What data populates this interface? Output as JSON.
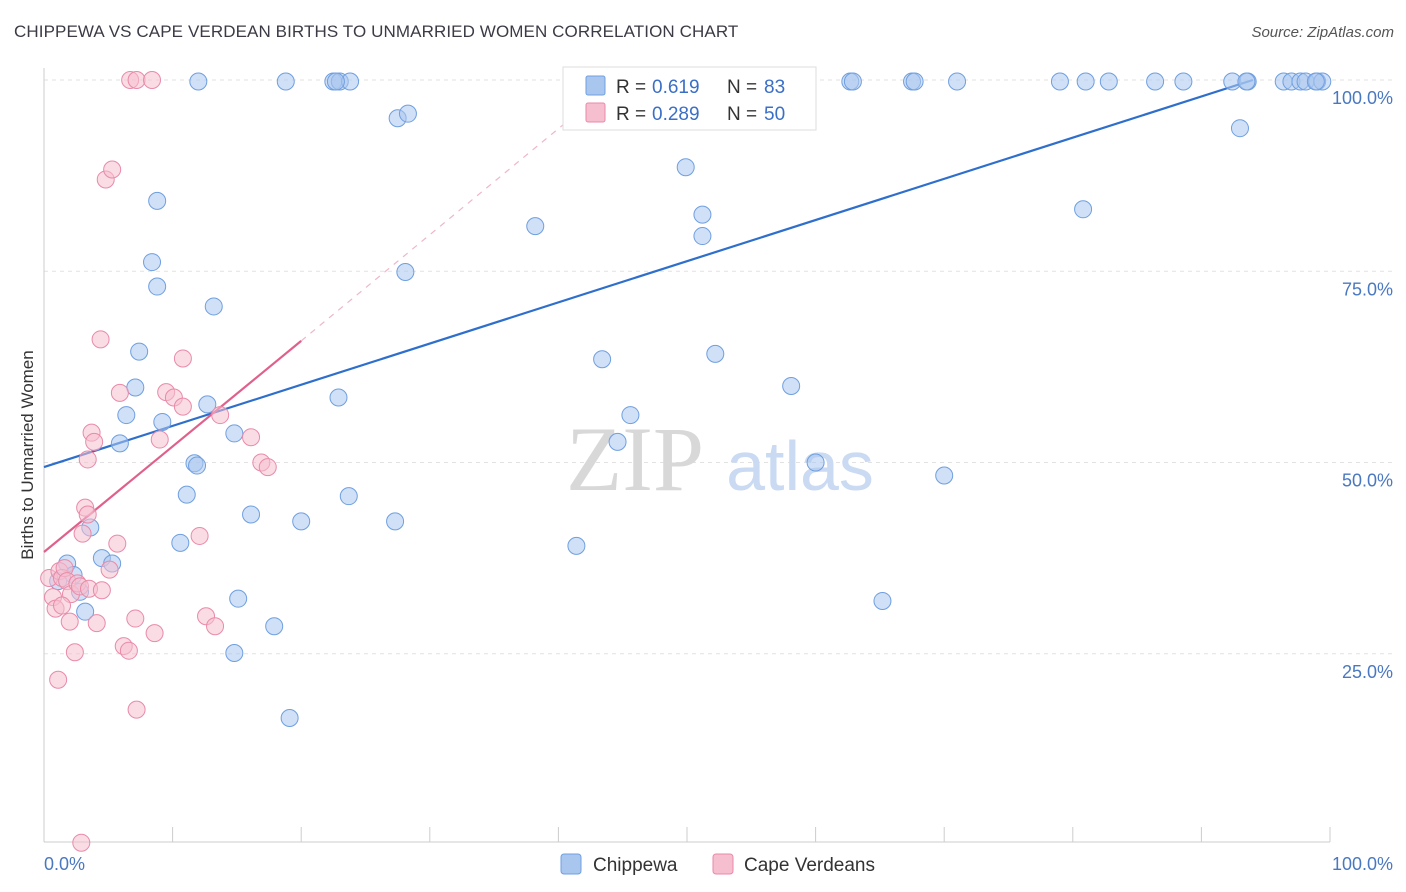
{
  "title": "CHIPPEWA VS CAPE VERDEAN BIRTHS TO UNMARRIED WOMEN CORRELATION CHART",
  "source": "Source: ZipAtlas.com",
  "watermark": {
    "zip": "ZIP",
    "atlas": "atlas"
  },
  "legend": {
    "r_label": "R =",
    "n_label": "N =",
    "rows": [
      {
        "r": "0.619",
        "n": "83",
        "color": "#a9c6ef",
        "stroke": "#6f9fe0"
      },
      {
        "r": "0.289",
        "n": "50",
        "color": "#f6bfd0",
        "stroke": "#e98aa9"
      }
    ]
  },
  "chart_data": {
    "type": "scatter",
    "title": "CHIPPEWA VS CAPE VERDEAN BIRTHS TO UNMARRIED WOMEN CORRELATION CHART",
    "xlabel": "",
    "ylabel": "Births to Unmarried Women",
    "xlim": [
      0,
      100
    ],
    "ylim": [
      0,
      105
    ],
    "x_tick_labels": [
      "0.0%",
      "100.0%"
    ],
    "y_ticks": [
      25,
      50,
      75,
      100
    ],
    "y_tick_labels": [
      "25.0%",
      "50.0%",
      "75.0%",
      "100.0%"
    ],
    "grid": true,
    "legend_position": "bottom",
    "series": [
      {
        "name": "Chippewa",
        "color": "#a9c6ef",
        "stroke": "#6f9fe0",
        "line_color": "#2f6fcc",
        "trend": {
          "x0": 0,
          "y0": 49.4,
          "x1": 94,
          "y1": 100
        },
        "x": [
          12,
          18.8,
          22.5,
          23,
          23.8,
          22.7,
          27.5,
          28.3,
          41.6,
          41.8,
          52.2,
          54.6,
          55.7,
          57.3,
          58.7,
          62.7,
          62.9,
          67.5,
          67.7,
          71,
          79,
          81,
          82.8,
          86.4,
          88.6,
          92.4,
          93.6,
          93.5,
          96.4,
          97,
          97.7,
          98.1,
          99,
          99.4,
          98.9,
          1.1,
          1.8,
          2.3,
          2.8,
          3.2,
          3.6,
          4.5,
          5.3,
          5.9,
          6.4,
          7.1,
          7.4,
          8.4,
          8.8,
          8.8,
          9.2,
          10.6,
          11.1,
          11.7,
          11.9,
          12.7,
          13.2,
          14.8,
          14.8,
          15.1,
          16.1,
          17.9,
          19.1,
          20,
          22.9,
          23.7,
          27.3,
          28.1,
          38.2,
          41.4,
          43.4,
          44.6,
          45.6,
          49.9,
          51.2,
          51.2,
          52.2,
          58.1,
          60,
          65.2,
          70,
          80.8,
          93
        ],
        "y": [
          99.8,
          99.8,
          99.8,
          99.8,
          99.8,
          99.8,
          95,
          95.6,
          99.8,
          99.8,
          99.8,
          99.8,
          99.8,
          99.8,
          99.8,
          99.8,
          99.8,
          99.8,
          99.8,
          99.8,
          99.8,
          99.8,
          99.8,
          99.8,
          99.8,
          99.8,
          99.8,
          99.8,
          99.8,
          99.8,
          99.8,
          99.8,
          99.8,
          99.8,
          99.8,
          34.5,
          36.8,
          35.3,
          33.1,
          30.5,
          41.5,
          37.5,
          36.8,
          52.5,
          56.2,
          59.8,
          64.5,
          76.2,
          84.2,
          73,
          55.3,
          39.5,
          45.8,
          49.9,
          49.6,
          57.6,
          70.4,
          53.8,
          25.1,
          32.2,
          43.2,
          28.6,
          16.6,
          42.3,
          58.5,
          45.6,
          42.3,
          74.9,
          80.9,
          39.1,
          63.5,
          52.7,
          56.2,
          88.6,
          82.4,
          79.6,
          64.2,
          60,
          50,
          31.9,
          48.3,
          83.1,
          93.7
        ]
      },
      {
        "name": "Cape Verdeans",
        "color": "#f6bfd0",
        "stroke": "#e98aa9",
        "line_color": "#e0608c",
        "trend": {
          "x0": 0,
          "y0": 38.3,
          "x1": 20,
          "y1": 65.9
        },
        "trend_extension": {
          "x0": 20,
          "y0": 65.9,
          "x1": 43,
          "y1": 97.8
        },
        "x": [
          0.4,
          0.7,
          0.9,
          1.1,
          1.2,
          1.4,
          1.6,
          1.8,
          2,
          2.1,
          2.4,
          2.6,
          2.8,
          3,
          3.2,
          3.4,
          3.5,
          3.7,
          3.9,
          4.1,
          4.5,
          4.8,
          5.1,
          5.7,
          5.9,
          6.2,
          6.6,
          7.1,
          7.2,
          8.6,
          9,
          9.5,
          10.1,
          10.8,
          12.1,
          12.6,
          13.3,
          13.7,
          16.1,
          16.9,
          17.4,
          1.4,
          2.9,
          3.4,
          4.4,
          5.3,
          6.7,
          7.2,
          8.4,
          10.8
        ],
        "y": [
          34.9,
          32.4,
          30.9,
          21.6,
          35.8,
          34.9,
          36.2,
          34.5,
          29.2,
          32.8,
          25.2,
          34.2,
          33.8,
          40.7,
          44.1,
          43.2,
          33.5,
          53.9,
          52.7,
          29,
          33.3,
          87,
          36,
          39.4,
          59.1,
          26,
          25.4,
          29.6,
          17.7,
          27.7,
          53,
          59.2,
          58.5,
          63.6,
          40.4,
          29.9,
          28.6,
          56.2,
          53.3,
          50,
          49.4,
          31.3,
          0.3,
          50.4,
          66.1,
          88.3,
          100,
          100,
          100,
          57.3
        ]
      }
    ]
  },
  "bottom_legend": [
    {
      "label": "Chippewa",
      "color": "#a9c6ef",
      "stroke": "#6f9fe0"
    },
    {
      "label": "Cape Verdeans",
      "color": "#f6bfd0",
      "stroke": "#e98aa9"
    }
  ]
}
